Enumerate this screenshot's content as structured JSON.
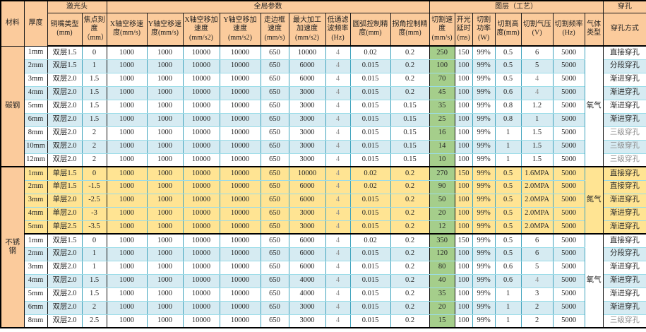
{
  "table": {
    "header": {
      "material": "材料",
      "thickness": "厚度",
      "groups": [
        {
          "label": "激光头",
          "span": 2
        },
        {
          "label": "全局参数",
          "span": 9
        },
        {
          "label": "图层（工艺）",
          "span": 7
        },
        {
          "label": "穿孔",
          "span": 1
        }
      ],
      "columns": [
        "铜嘴类型 (mm)",
        "焦点刻度（mm）",
        "X轴空移速度(mm/s)",
        "Y轴空移速度(mm/s)",
        "X轴空移加速度 (mm/s2)",
        "Y轴空移加速度 (mm/s2)",
        "走边框速度 (mm/s)",
        "最大加工加速度 (mm/s2)",
        "低通滤波频率 (Hz)",
        "圆弧控制精度(mm)",
        "拐角控制精度(mm)",
        "切割速度 (mm/s)",
        "开光延时 (ms)",
        "切割功率 (W)",
        "切割高度(mm)",
        "切割气压 (V)",
        "切割频率 (Hz)",
        "气体类型",
        "穿孔方式"
      ]
    },
    "materials": [
      {
        "label": "碳钢",
        "rows": 9
      },
      {
        "label": "不锈钢",
        "rows": 12
      }
    ],
    "gas_groups": [
      {
        "label": "氧气",
        "rows": 9,
        "bg": "white"
      },
      {
        "label": "氮气",
        "rows": 5,
        "bg": "yellow"
      },
      {
        "label": "氧气",
        "rows": 7,
        "bg": "white"
      }
    ],
    "rows": [
      {
        "stripe": "white",
        "cells": [
          "1mm",
          "双层1.5",
          "0",
          "1000",
          "1000",
          "10000",
          "10000",
          "650",
          "10000",
          "4",
          "0.02",
          "0.2",
          "250",
          "150",
          "99%",
          "0.5",
          "6",
          "5000"
        ],
        "pierce": "直接穿孔"
      },
      {
        "stripe": "blue",
        "cells": [
          "2mm",
          "双层1.5",
          "1",
          "1000",
          "1000",
          "10000",
          "10000",
          "650",
          "6000",
          "4",
          "0.015",
          "0.2",
          "100",
          "100",
          "99%",
          "0.5",
          "5",
          "5000"
        ],
        "pierce": "分段穿孔"
      },
      {
        "stripe": "white",
        "cells": [
          "3mm",
          "双层2.0",
          "1.5",
          "1000",
          "1000",
          "10000",
          "10000",
          "650",
          "6000",
          "4",
          "0.015",
          "0.2",
          "70",
          "100",
          "99%",
          "0.5",
          "4",
          "5000"
        ],
        "pierce": "渐进穿孔"
      },
      {
        "stripe": "blue",
        "cells": [
          "4mm",
          "双层2.0",
          "1.5",
          "1000",
          "1000",
          "10000",
          "10000",
          "650",
          "3000",
          "4",
          "0.015",
          "0.2",
          "45",
          "100",
          "99%",
          "0.6",
          "4",
          "5000"
        ],
        "pierce": "渐进穿孔"
      },
      {
        "stripe": "white",
        "cells": [
          "5mm",
          "双层2.0",
          "1.5",
          "1000",
          "1000",
          "10000",
          "10000",
          "650",
          "3000",
          "4",
          "0.015",
          "0.15",
          "35",
          "100",
          "99%",
          "0.8",
          "1.2",
          "5000"
        ],
        "pierce": "渐进穿孔"
      },
      {
        "stripe": "blue",
        "cells": [
          "6mm",
          "双层2.0",
          "1.5",
          "1000",
          "1000",
          "10000",
          "10000",
          "650",
          "3000",
          "4",
          "0.015",
          "0.15",
          "25",
          "100",
          "99%",
          "0.8",
          "1",
          "5000"
        ],
        "pierce": "渐进穿孔"
      },
      {
        "stripe": "white",
        "cells": [
          "8mm",
          "双层2.0",
          "2",
          "1000",
          "1000",
          "10000",
          "10000",
          "650",
          "3000",
          "4",
          "0.015",
          "0.15",
          "16",
          "100",
          "99%",
          "1",
          "1.5",
          "5000"
        ],
        "pierce": "三级穿孔"
      },
      {
        "stripe": "blue",
        "cells": [
          "10mm",
          "双层2.0",
          "2",
          "1000",
          "1000",
          "10000",
          "10000",
          "650",
          "3000",
          "4",
          "0.015",
          "0.15",
          "14",
          "100",
          "99%",
          "1",
          "1.5",
          "5000"
        ],
        "pierce": "三级穿孔"
      },
      {
        "stripe": "white",
        "cells": [
          "12mm",
          "双层2.0",
          "2",
          "1000",
          "1000",
          "10000",
          "10000",
          "650",
          "3000",
          "4",
          "0.015",
          "0.15",
          "10",
          "100",
          "99%",
          "1",
          "1.5",
          "5000"
        ],
        "pierce": "三级穿孔"
      },
      {
        "stripe": "yellow",
        "section_start": true,
        "cells": [
          "1mm",
          "单层1.5",
          "0",
          "1000",
          "1000",
          "10000",
          "10000",
          "650",
          "10000",
          "4",
          "0.02",
          "0.2",
          "270",
          "150",
          "99%",
          "0.5",
          "1.6MPA",
          "5000"
        ],
        "pierce": "直接穿孔"
      },
      {
        "stripe": "yellow",
        "cells": [
          "2mm",
          "单层1.5",
          "-1.5",
          "1000",
          "1000",
          "10000",
          "10000",
          "650",
          "6000",
          "4",
          "0.02",
          "0.2",
          "90",
          "100",
          "99%",
          "0.5",
          "2.0MPA",
          "5000"
        ],
        "pierce": "直接穿孔"
      },
      {
        "stripe": "yellow",
        "cells": [
          "3mm",
          "单层2.0",
          "-2.5",
          "1000",
          "1000",
          "10000",
          "10000",
          "650",
          "6000",
          "4",
          "0.015",
          "0.2",
          "50",
          "100",
          "99%",
          "0.5",
          "2.0MPA",
          "5000"
        ],
        "pierce": "渐进穿孔"
      },
      {
        "stripe": "yellow",
        "cells": [
          "4mm",
          "单层2.0",
          "-3",
          "1000",
          "1000",
          "10000",
          "10000",
          "650",
          "3000",
          "4",
          "0.015",
          "0.2",
          "20",
          "100",
          "99%",
          "0.5",
          "2.0MPA",
          "5000"
        ],
        "pierce": "渐进穿孔"
      },
      {
        "stripe": "yellow",
        "cells": [
          "5mm",
          "单层2.5",
          "-3.5",
          "1000",
          "1000",
          "10000",
          "10000",
          "650",
          "3000",
          "4",
          "0.015",
          "0.2",
          "12",
          "100",
          "99%",
          "0.5",
          "2.0MPA",
          "5000"
        ],
        "pierce": "渐进穿孔"
      },
      {
        "stripe": "white",
        "section_start": true,
        "cells": [
          "1mm",
          "双层1.5",
          "0",
          "1000",
          "1000",
          "10000",
          "10000",
          "650",
          "6000",
          "4",
          "0.02",
          "0.2",
          "350",
          "150",
          "99%",
          "0.5",
          "6",
          "5000"
        ],
        "pierce": "直接穿孔"
      },
      {
        "stripe": "blue",
        "cells": [
          "2mm",
          "双层2.0",
          "1",
          "1000",
          "1000",
          "10000",
          "10000",
          "650",
          "6000",
          "4",
          "0.015",
          "0.2",
          "120",
          "100",
          "99%",
          "0.5",
          "6",
          "5000"
        ],
        "pierce": "分段穿孔"
      },
      {
        "stripe": "white",
        "cells": [
          "3mm",
          "双层2.0",
          "1",
          "1000",
          "1000",
          "10000",
          "10000",
          "650",
          "6000",
          "4",
          "0.015",
          "0.2",
          "80",
          "100",
          "99%",
          "0.6",
          "5",
          "5000"
        ],
        "pierce": "渐进穿孔"
      },
      {
        "stripe": "blue",
        "cells": [
          "4mm",
          "双层2.0",
          "1.5",
          "1000",
          "1000",
          "10000",
          "10000",
          "650",
          "4000",
          "4",
          "0.015",
          "0.2",
          "40",
          "100",
          "99%",
          "0.6",
          "4",
          "5000"
        ],
        "pierce": "渐进穿孔"
      },
      {
        "stripe": "white",
        "cells": [
          "5mm",
          "双层2.0",
          "1.5",
          "1000",
          "1000",
          "10000",
          "10000",
          "650",
          "4000",
          "4",
          "0.015",
          "0.2",
          "35",
          "100",
          "99%",
          "1",
          "3",
          "5000"
        ],
        "pierce": "渐进穿孔"
      },
      {
        "stripe": "blue",
        "cells": [
          "6mm",
          "双层2.0",
          "2",
          "1000",
          "1000",
          "10000",
          "10000",
          "650",
          "3000",
          "4",
          "0.015",
          "0.2",
          "20",
          "100",
          "99%",
          "1",
          "2",
          "5000"
        ],
        "pierce": "渐进穿孔"
      },
      {
        "stripe": "white",
        "cells": [
          "8mm",
          "双层2.0",
          "2.5",
          "1000",
          "1000",
          "10000",
          "10000",
          "650",
          "3000",
          "4",
          "0.015",
          "0.2",
          "15",
          "100",
          "99%",
          "1",
          "2",
          "5000"
        ],
        "pierce": "三级穿孔"
      }
    ]
  },
  "colors": {
    "header_bg": "#FBCB9C",
    "stripe_blue": "#D6EBF2",
    "stripe_yellow": "#FFE493",
    "speed_column_green": "#A5CE8B",
    "grid_vertical": "#3FA3BD",
    "grid_horizontal": "#9ADCE8",
    "section_border": "#000000"
  }
}
